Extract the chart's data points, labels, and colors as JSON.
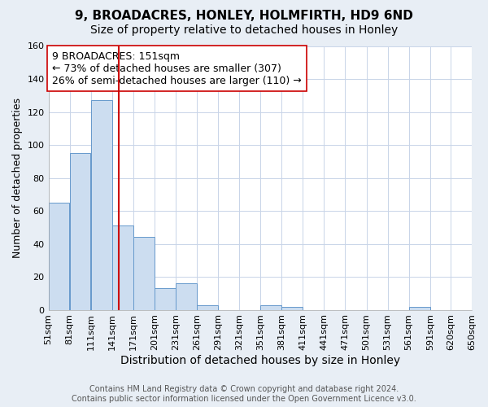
{
  "title1": "9, BROADACRES, HONLEY, HOLMFIRTH, HD9 6ND",
  "title2": "Size of property relative to detached houses in Honley",
  "xlabel": "Distribution of detached houses by size in Honley",
  "ylabel": "Number of detached properties",
  "bin_edges": [
    51,
    81,
    111,
    141,
    171,
    201,
    231,
    261,
    291,
    321,
    351,
    381,
    411,
    441,
    471,
    501,
    531,
    561,
    591,
    620,
    650
  ],
  "bar_heights": [
    65,
    95,
    127,
    51,
    44,
    13,
    16,
    3,
    0,
    0,
    3,
    2,
    0,
    0,
    0,
    0,
    0,
    2,
    0,
    0
  ],
  "bar_color": "#ccddf0",
  "bar_edge_color": "#6699cc",
  "property_size": 151,
  "vline_color": "#cc0000",
  "annotation_box_edge": "#cc0000",
  "annotation_text_line1": "9 BROADACRES: 151sqm",
  "annotation_text_line2": "← 73% of detached houses are smaller (307)",
  "annotation_text_line3": "26% of semi-detached houses are larger (110) →",
  "annotation_fontsize": 9,
  "title1_fontsize": 11,
  "title2_fontsize": 10,
  "xlabel_fontsize": 10,
  "ylabel_fontsize": 9,
  "tick_fontsize": 8,
  "ylim": [
    0,
    160
  ],
  "yticks": [
    0,
    20,
    40,
    60,
    80,
    100,
    120,
    140,
    160
  ],
  "grid_color": "#c8d4e8",
  "plot_background": "#ffffff",
  "figure_background": "#e8eef5",
  "footer_line1": "Contains HM Land Registry data © Crown copyright and database right 2024.",
  "footer_line2": "Contains public sector information licensed under the Open Government Licence v3.0.",
  "footer_fontsize": 7
}
